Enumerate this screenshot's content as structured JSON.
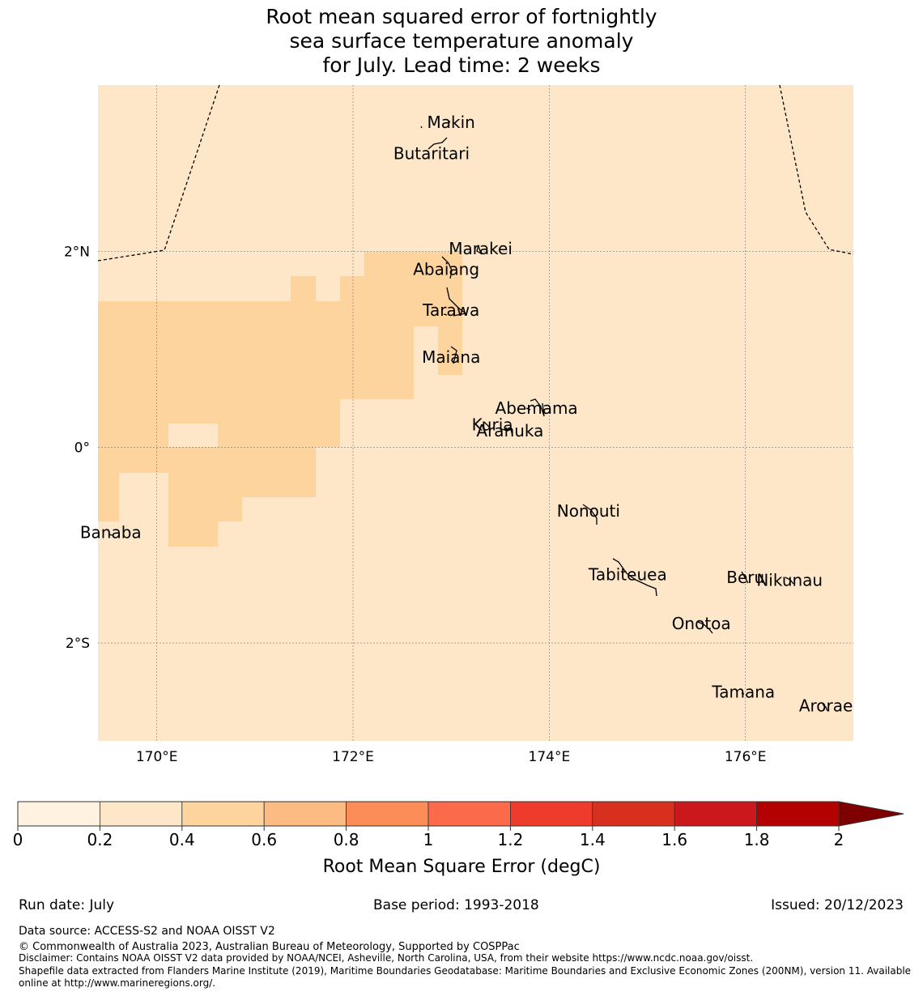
{
  "title_lines": [
    "Root mean squared error of fortnightly",
    "sea surface temperature anomaly",
    "for July. Lead time: 2 weeks"
  ],
  "map": {
    "lon_range": [
      169.4,
      177.1
    ],
    "lat_range": [
      -3.0,
      3.7
    ],
    "lon_ticks": [
      {
        "value": 170,
        "label": "170°E"
      },
      {
        "value": 172,
        "label": "172°E"
      },
      {
        "value": 174,
        "label": "174°E"
      },
      {
        "value": 176,
        "label": "176°E"
      }
    ],
    "lat_ticks": [
      {
        "value": 2,
        "label": "2°N"
      },
      {
        "value": 0,
        "label": "0°"
      },
      {
        "value": -2,
        "label": "2°S"
      }
    ],
    "background_class": "0.2-0.4",
    "islands": [
      {
        "name": "Makin",
        "lon": 173.0,
        "lat": 3.32
      },
      {
        "name": "Butaritari",
        "lon": 172.8,
        "lat": 3.0
      },
      {
        "name": "Marakei",
        "lon": 173.3,
        "lat": 2.03
      },
      {
        "name": "Abaiang",
        "lon": 172.95,
        "lat": 1.82
      },
      {
        "name": "Tarawa",
        "lon": 173.0,
        "lat": 1.4
      },
      {
        "name": "Maiana",
        "lon": 173.0,
        "lat": 0.92
      },
      {
        "name": "Abemama",
        "lon": 173.87,
        "lat": 0.4
      },
      {
        "name": "Kuria",
        "lon": 173.42,
        "lat": 0.23
      },
      {
        "name": "Aranuka",
        "lon": 173.6,
        "lat": 0.17
      },
      {
        "name": "Nonouti",
        "lon": 174.4,
        "lat": -0.65
      },
      {
        "name": "Banaba",
        "lon": 169.53,
        "lat": -0.87
      },
      {
        "name": "Tabiteuea",
        "lon": 174.8,
        "lat": -1.3
      },
      {
        "name": "Beru",
        "lon": 176.0,
        "lat": -1.33
      },
      {
        "name": "Nikunau",
        "lon": 176.45,
        "lat": -1.36
      },
      {
        "name": "Onotoa",
        "lon": 175.55,
        "lat": -1.8
      },
      {
        "name": "Tamana",
        "lon": 175.98,
        "lat": -2.5
      },
      {
        "name": "Arorae",
        "lon": 176.82,
        "lat": -2.64
      }
    ]
  },
  "colorbar": {
    "bounds": [
      "0",
      "0.2",
      "0.4",
      "0.6",
      "0.8",
      "1",
      "1.2",
      "1.4",
      "1.6",
      "1.8",
      "2"
    ],
    "colors": [
      "#fff2e0",
      "#fee7c9",
      "#fdd49e",
      "#fdbb84",
      "#fc8d59",
      "#fb6a4a",
      "#ef3b2c",
      "#d7301f",
      "#cb181d",
      "#b30000"
    ],
    "extend_color": "#7f0000",
    "label": "Root Mean Square Error (degC)"
  },
  "footer": {
    "run_date": "Run date: July",
    "base_period": "Base period: 1993-2018",
    "issued": "Issued: 20/12/2023",
    "data_source": "Data source: ACCESS-S2 and NOAA OISST V2",
    "copyright": "© Commonwealth of Australia 2023, Australian Bureau of Meteorology, Supported by COSPPac",
    "disclaimer": "Disclaimer: Contains NOAA OISST V2 data provided by NOAA/NCEI, Asheville, North Carolina, USA, from their website https://www.ncdc.noaa.gov/oisst.",
    "shapefile_1": "Shapefile data extracted from Flanders Marine Institute (2019), Maritime Boundaries Geodatabase: Maritime Boundaries and Exclusive Economic Zones (200NM), version 11. Available",
    "shapefile_2": "online at http://www.marineregions.org/."
  }
}
